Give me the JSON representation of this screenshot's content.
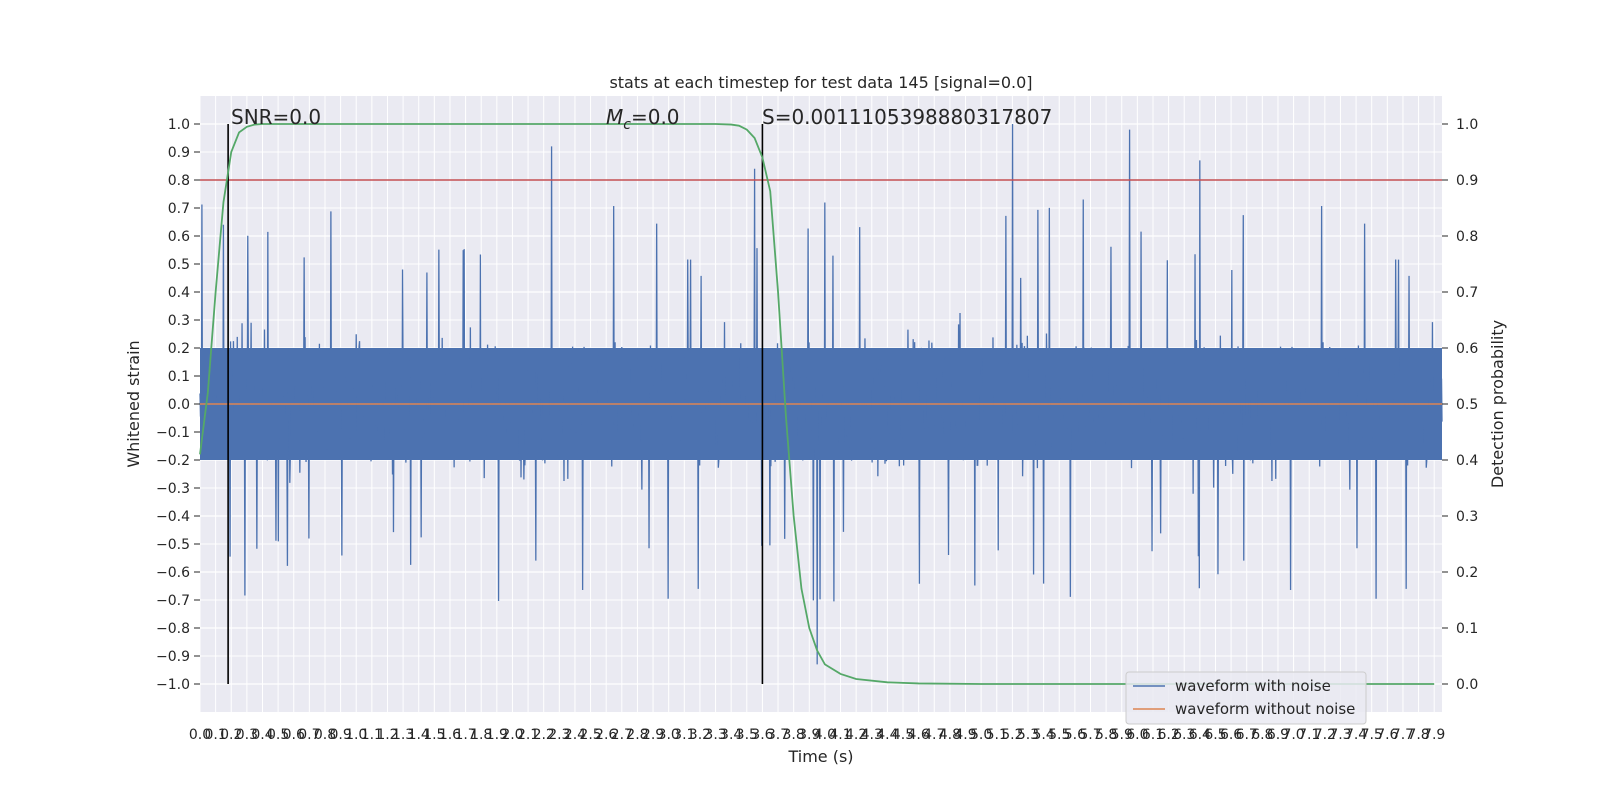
{
  "chart_data": {
    "type": "line",
    "title": "stats at each timestep for test data 145 [signal=0.0]",
    "xlabel": "Time (s)",
    "ylabel": "Whitened strain",
    "y2label": "Detection probability",
    "xlim": [
      0.0,
      7.95
    ],
    "ylim": [
      -1.1,
      1.1
    ],
    "y2lim": [
      -0.05,
      1.05
    ],
    "grid": true,
    "legend_position": "lower-right",
    "x_ticks": [
      0.0,
      0.1,
      0.2,
      0.3,
      0.4,
      0.5,
      0.6,
      0.7,
      0.8,
      0.9,
      1.0,
      1.1,
      1.2,
      1.3,
      1.4,
      1.5,
      1.6,
      1.7,
      1.8,
      1.9,
      2.0,
      2.1,
      2.2,
      2.3,
      2.4,
      2.5,
      2.6,
      2.7,
      2.8,
      2.9,
      3.0,
      3.1,
      3.2,
      3.3,
      3.4,
      3.5,
      3.6,
      3.7,
      3.8,
      3.9,
      4.0,
      4.1,
      4.2,
      4.3,
      4.4,
      4.5,
      4.6,
      4.7,
      4.8,
      4.9,
      5.0,
      5.1,
      5.2,
      5.3,
      5.4,
      5.5,
      5.6,
      5.7,
      5.8,
      5.9,
      6.0,
      6.1,
      6.2,
      6.3,
      6.4,
      6.5,
      6.6,
      6.7,
      6.8,
      6.9,
      7.0,
      7.1,
      7.2,
      7.3,
      7.4,
      7.5,
      7.6,
      7.7,
      7.8,
      7.9
    ],
    "x_tick_labels": [
      "0.0",
      "0.1",
      "0.2",
      "0.3",
      "0.4",
      "0.5",
      "0.6",
      "0.7",
      "0.8",
      "0.9",
      "1.0",
      "1.1",
      "1.2",
      "1.3",
      "1.4",
      "1.5",
      "1.6",
      "1.7",
      "1.8",
      "1.9",
      "2.0",
      "2.1",
      "2.2",
      "2.3",
      "2.4",
      "2.5",
      "2.6",
      "2.7",
      "2.8",
      "2.9",
      "3.0",
      "3.1",
      "3.2",
      "3.3",
      "3.4",
      "3.5",
      "3.6",
      "3.7",
      "3.8",
      "3.9",
      "4.0",
      "4.1",
      "4.2",
      "4.3",
      "4.4",
      "4.5",
      "4.6",
      "4.7",
      "4.8",
      "4.9",
      "5.0",
      "5.1",
      "5.2",
      "5.3",
      "5.4",
      "5.5",
      "5.6",
      "5.7",
      "5.8",
      "5.9",
      "6.0",
      "6.1",
      "6.2",
      "6.3",
      "6.4",
      "6.5",
      "6.6",
      "6.7",
      "6.8",
      "6.9",
      "7.0",
      "7.1",
      "7.2",
      "7.3",
      "7.4",
      "7.5",
      "7.6",
      "7.7",
      "7.8",
      "7.9"
    ],
    "y_ticks": [
      -1.0,
      -0.9,
      -0.8,
      -0.7,
      -0.6,
      -0.5,
      -0.4,
      -0.3,
      -0.2,
      -0.1,
      0.0,
      0.1,
      0.2,
      0.3,
      0.4,
      0.5,
      0.6,
      0.7,
      0.8,
      0.9,
      1.0
    ],
    "y_tick_labels": [
      "−1.0",
      "−0.9",
      "−0.8",
      "−0.7",
      "−0.6",
      "−0.5",
      "−0.4",
      "−0.3",
      "−0.2",
      "−0.1",
      "0.0",
      "0.1",
      "0.2",
      "0.3",
      "0.4",
      "0.5",
      "0.6",
      "0.7",
      "0.8",
      "0.9",
      "1.0"
    ],
    "y2_ticks": [
      0.0,
      0.1,
      0.2,
      0.3,
      0.4,
      0.5,
      0.6,
      0.7,
      0.8,
      0.9,
      1.0
    ],
    "y2_tick_labels": [
      "0.0",
      "0.1",
      "0.2",
      "0.3",
      "0.4",
      "0.5",
      "0.6",
      "0.7",
      "0.8",
      "0.9",
      "1.0"
    ],
    "annotations": {
      "snr": "SNR=0.0",
      "mc_symbol": "M",
      "mc_subscript": "c",
      "mc_value": "=0.0",
      "s": "S=0.0011105398880317807"
    },
    "vertical_markers_x": [
      0.18,
      3.6
    ],
    "threshold_line_y2": 0.9,
    "series": [
      {
        "name": "waveform with noise",
        "axis": "left",
        "color": "#4c72b0",
        "description_values": "noise spanning approximately -0.95 to 1.0",
        "peaks_x": [
          0.15,
          2.25,
          3.55,
          3.95,
          5.2,
          5.95,
          6.4
        ],
        "peaks_y": [
          0.64,
          0.92,
          0.84,
          -0.93,
          1.0,
          0.98,
          0.87
        ]
      },
      {
        "name": "waveform without noise",
        "axis": "left",
        "color": "#dd8452",
        "x": [
          0.0,
          7.95
        ],
        "y": [
          0.0,
          0.0
        ]
      },
      {
        "name": "",
        "axis": "right",
        "color": "#55a868",
        "x": [
          0.0,
          0.05,
          0.1,
          0.15,
          0.2,
          0.25,
          0.3,
          0.35,
          0.4,
          0.5,
          0.6,
          1.0,
          2.0,
          3.0,
          3.3,
          3.4,
          3.45,
          3.5,
          3.55,
          3.6,
          3.65,
          3.7,
          3.75,
          3.8,
          3.85,
          3.9,
          3.95,
          4.0,
          4.1,
          4.2,
          4.4,
          4.6,
          5.0,
          6.0,
          7.0,
          7.9
        ],
        "y": [
          0.41,
          0.52,
          0.7,
          0.86,
          0.95,
          0.985,
          0.995,
          0.999,
          1.0,
          1.0,
          1.0,
          1.0,
          1.0,
          1.0,
          1.0,
          0.999,
          0.997,
          0.99,
          0.975,
          0.94,
          0.88,
          0.7,
          0.48,
          0.3,
          0.17,
          0.1,
          0.06,
          0.035,
          0.018,
          0.009,
          0.003,
          0.001,
          0.0,
          0.0,
          0.0,
          0.0
        ]
      }
    ]
  },
  "colors": {
    "plot_background": "#eaeaf2",
    "grid": "#ffffff",
    "noise": "#4c72b0",
    "clean": "#dd8452",
    "probability": "#55a868",
    "threshold": "#c44e52",
    "marker": "#000000"
  }
}
